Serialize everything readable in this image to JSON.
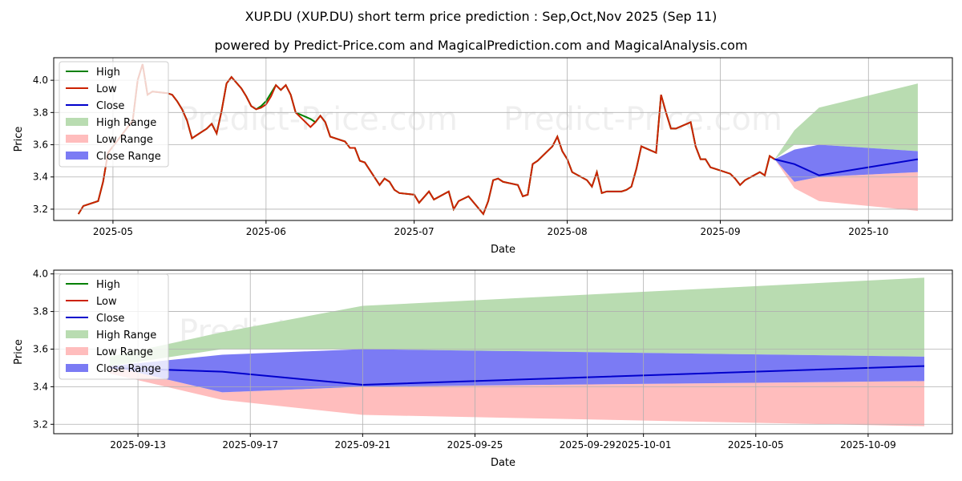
{
  "title": "XUP.DU (XUP.DU) short term price prediction : Sep,Oct,Nov 2025 (Sep 11)",
  "subtitle": "powered by Predict-Price.com and MagicalPrediction.com and MagicalAnalysis.com",
  "watermark": "Predict-Price.com",
  "colors": {
    "high": "#008000",
    "low": "#cc2200",
    "close": "#0000cc",
    "high_range": "#b9dcb1",
    "low_range": "#ffbdbd",
    "close_range": "#7b7bf4"
  },
  "legend": [
    {
      "key": "high",
      "label": "High",
      "kind": "line"
    },
    {
      "key": "low",
      "label": "Low",
      "kind": "line"
    },
    {
      "key": "close",
      "label": "Close",
      "kind": "line"
    },
    {
      "key": "high_range",
      "label": "High Range",
      "kind": "patch"
    },
    {
      "key": "low_range",
      "label": "Low Range",
      "kind": "patch"
    },
    {
      "key": "close_range",
      "label": "Close Range",
      "kind": "patch"
    }
  ],
  "chart_data": [
    {
      "type": "line",
      "xlabel": "Date",
      "ylabel": "Price",
      "xlim": [
        "2025-04-19",
        "2025-10-18"
      ],
      "ylim": [
        3.13,
        4.14
      ],
      "grid": true,
      "legend_position": "top-left",
      "xticks": [
        "2025-05-01",
        "2025-06-01",
        "2025-07-01",
        "2025-08-01",
        "2025-09-01",
        "2025-10-01"
      ],
      "xtick_labels": [
        "2025-05",
        "2025-06",
        "2025-07",
        "2025-08",
        "2025-09",
        "2025-10"
      ],
      "yticks": [
        3.2,
        3.4,
        3.6,
        3.8,
        4.0
      ],
      "ytick_labels": [
        "3.2",
        "3.4",
        "3.6",
        "3.8",
        "4.0"
      ],
      "history": [
        [
          "2025-04-24",
          3.17,
          3.17
        ],
        [
          "2025-04-25",
          3.22,
          3.22
        ],
        [
          "2025-04-28",
          3.25,
          3.25
        ],
        [
          "2025-04-29",
          3.37,
          3.37
        ],
        [
          "2025-04-30",
          3.55,
          3.55
        ],
        [
          "2025-05-02",
          3.63,
          3.63
        ],
        [
          "2025-05-05",
          3.75,
          3.75
        ],
        [
          "2025-05-06",
          4.0,
          4.0
        ],
        [
          "2025-05-07",
          4.1,
          4.1
        ],
        [
          "2025-05-08",
          3.91,
          3.91
        ],
        [
          "2025-05-09",
          3.93,
          3.93
        ],
        [
          "2025-05-12",
          3.92,
          3.92
        ],
        [
          "2025-05-13",
          3.91,
          3.91
        ],
        [
          "2025-05-14",
          3.87,
          3.87
        ],
        [
          "2025-05-15",
          3.82,
          3.82
        ],
        [
          "2025-05-16",
          3.75,
          3.75
        ],
        [
          "2025-05-17",
          3.64,
          3.64
        ],
        [
          "2025-05-20",
          3.7,
          3.7
        ],
        [
          "2025-05-21",
          3.73,
          3.73
        ],
        [
          "2025-05-22",
          3.67,
          3.67
        ],
        [
          "2025-05-23",
          3.81,
          3.81
        ],
        [
          "2025-05-24",
          3.98,
          3.98
        ],
        [
          "2025-05-25",
          4.02,
          4.02
        ],
        [
          "2025-05-27",
          3.95,
          3.95
        ],
        [
          "2025-05-28",
          3.9,
          3.9
        ],
        [
          "2025-05-29",
          3.84,
          3.84
        ],
        [
          "2025-05-30",
          3.82,
          3.82
        ],
        [
          "2025-05-31",
          3.84,
          3.83
        ],
        [
          "2025-06-01",
          3.87,
          3.85
        ],
        [
          "2025-06-02",
          3.92,
          3.9
        ],
        [
          "2025-06-03",
          3.97,
          3.97
        ],
        [
          "2025-06-04",
          3.94,
          3.94
        ],
        [
          "2025-06-05",
          3.97,
          3.97
        ],
        [
          "2025-06-06",
          3.91,
          3.91
        ],
        [
          "2025-06-07",
          3.8,
          3.8
        ],
        [
          "2025-06-10",
          3.76,
          3.71
        ],
        [
          "2025-06-11",
          3.74,
          3.74
        ],
        [
          "2025-06-12",
          3.78,
          3.78
        ],
        [
          "2025-06-13",
          3.74,
          3.74
        ],
        [
          "2025-06-14",
          3.65,
          3.65
        ],
        [
          "2025-06-17",
          3.62,
          3.62
        ],
        [
          "2025-06-18",
          3.58,
          3.58
        ],
        [
          "2025-06-19",
          3.58,
          3.58
        ],
        [
          "2025-06-20",
          3.5,
          3.5
        ],
        [
          "2025-06-21",
          3.49,
          3.49
        ],
        [
          "2025-06-24",
          3.35,
          3.35
        ],
        [
          "2025-06-25",
          3.39,
          3.39
        ],
        [
          "2025-06-26",
          3.37,
          3.37
        ],
        [
          "2025-06-27",
          3.32,
          3.32
        ],
        [
          "2025-06-28",
          3.3,
          3.3
        ],
        [
          "2025-07-01",
          3.29,
          3.29
        ],
        [
          "2025-07-02",
          3.24,
          3.24
        ],
        [
          "2025-07-04",
          3.31,
          3.31
        ],
        [
          "2025-07-05",
          3.26,
          3.26
        ],
        [
          "2025-07-08",
          3.31,
          3.31
        ],
        [
          "2025-07-09",
          3.2,
          3.2
        ],
        [
          "2025-07-10",
          3.25,
          3.25
        ],
        [
          "2025-07-12",
          3.28,
          3.28
        ],
        [
          "2025-07-15",
          3.17,
          3.17
        ],
        [
          "2025-07-16",
          3.25,
          3.25
        ],
        [
          "2025-07-17",
          3.38,
          3.38
        ],
        [
          "2025-07-18",
          3.39,
          3.39
        ],
        [
          "2025-07-19",
          3.37,
          3.37
        ],
        [
          "2025-07-22",
          3.35,
          3.35
        ],
        [
          "2025-07-23",
          3.28,
          3.28
        ],
        [
          "2025-07-24",
          3.29,
          3.29
        ],
        [
          "2025-07-25",
          3.48,
          3.48
        ],
        [
          "2025-07-26",
          3.5,
          3.5
        ],
        [
          "2025-07-29",
          3.59,
          3.59
        ],
        [
          "2025-07-30",
          3.65,
          3.65
        ],
        [
          "2025-07-31",
          3.56,
          3.56
        ],
        [
          "2025-08-01",
          3.51,
          3.51
        ],
        [
          "2025-08-02",
          3.43,
          3.43
        ],
        [
          "2025-08-05",
          3.38,
          3.38
        ],
        [
          "2025-08-06",
          3.34,
          3.34
        ],
        [
          "2025-08-07",
          3.43,
          3.43
        ],
        [
          "2025-08-08",
          3.3,
          3.3
        ],
        [
          "2025-08-09",
          3.31,
          3.31
        ],
        [
          "2025-08-12",
          3.31,
          3.31
        ],
        [
          "2025-08-13",
          3.32,
          3.32
        ],
        [
          "2025-08-14",
          3.34,
          3.34
        ],
        [
          "2025-08-15",
          3.45,
          3.45
        ],
        [
          "2025-08-16",
          3.59,
          3.59
        ],
        [
          "2025-08-19",
          3.55,
          3.55
        ],
        [
          "2025-08-20",
          3.91,
          3.91
        ],
        [
          "2025-08-21",
          3.8,
          3.8
        ],
        [
          "2025-08-22",
          3.7,
          3.7
        ],
        [
          "2025-08-23",
          3.7,
          3.7
        ],
        [
          "2025-08-26",
          3.74,
          3.74
        ],
        [
          "2025-08-27",
          3.59,
          3.59
        ],
        [
          "2025-08-28",
          3.51,
          3.51
        ],
        [
          "2025-08-29",
          3.51,
          3.51
        ],
        [
          "2025-08-30",
          3.46,
          3.46
        ],
        [
          "2025-09-02",
          3.43,
          3.43
        ],
        [
          "2025-09-03",
          3.42,
          3.42
        ],
        [
          "2025-09-04",
          3.39,
          3.39
        ],
        [
          "2025-09-05",
          3.35,
          3.35
        ],
        [
          "2025-09-06",
          3.38,
          3.38
        ],
        [
          "2025-09-09",
          3.43,
          3.43
        ],
        [
          "2025-09-10",
          3.41,
          3.41
        ],
        [
          "2025-09-11",
          3.53,
          3.53
        ],
        [
          "2025-09-12",
          3.51,
          3.51
        ]
      ],
      "forecast": {
        "x": [
          "2025-09-12",
          "2025-09-16",
          "2025-09-21",
          "2025-10-11"
        ],
        "close": [
          3.51,
          3.48,
          3.41,
          3.51
        ],
        "high_range": [
          [
            3.51,
            3.51
          ],
          [
            3.6,
            3.69
          ],
          [
            3.6,
            3.83
          ],
          [
            3.56,
            3.98
          ]
        ],
        "low_range": [
          [
            3.51,
            3.51
          ],
          [
            3.37,
            3.33
          ],
          [
            3.4,
            3.25
          ],
          [
            3.43,
            3.19
          ]
        ],
        "close_range": [
          [
            3.51,
            3.51
          ],
          [
            3.37,
            3.57
          ],
          [
            3.4,
            3.6
          ],
          [
            3.43,
            3.56
          ]
        ]
      }
    },
    {
      "type": "line",
      "xlabel": "Date",
      "ylabel": "Price",
      "xlim": [
        "2025-09-10",
        "2025-10-12"
      ],
      "ylim": [
        3.15,
        4.02
      ],
      "grid": true,
      "legend_position": "top-left",
      "xticks": [
        "2025-09-13",
        "2025-09-17",
        "2025-09-21",
        "2025-09-25",
        "2025-09-29",
        "2025-10-01",
        "2025-10-05",
        "2025-10-09"
      ],
      "xtick_labels": [
        "2025-09-13",
        "2025-09-17",
        "2025-09-21",
        "2025-09-25",
        "2025-09-29",
        "2025-10-01",
        "2025-10-05",
        "2025-10-09"
      ],
      "yticks": [
        3.2,
        3.4,
        3.6,
        3.8,
        4.0
      ],
      "ytick_labels": [
        "3.2",
        "3.4",
        "3.6",
        "3.8",
        "4.0"
      ],
      "history": [],
      "forecast": {
        "x": [
          "2025-09-12",
          "2025-09-16",
          "2025-09-21",
          "2025-10-11"
        ],
        "close": [
          3.5,
          3.48,
          3.41,
          3.51
        ],
        "high_range": [
          [
            3.51,
            3.56
          ],
          [
            3.6,
            3.69
          ],
          [
            3.6,
            3.83
          ],
          [
            3.56,
            3.98
          ]
        ],
        "low_range": [
          [
            3.51,
            3.47
          ],
          [
            3.37,
            3.33
          ],
          [
            3.4,
            3.25
          ],
          [
            3.43,
            3.19
          ]
        ],
        "close_range": [
          [
            3.51,
            3.51
          ],
          [
            3.37,
            3.57
          ],
          [
            3.4,
            3.6
          ],
          [
            3.43,
            3.56
          ]
        ]
      }
    }
  ]
}
